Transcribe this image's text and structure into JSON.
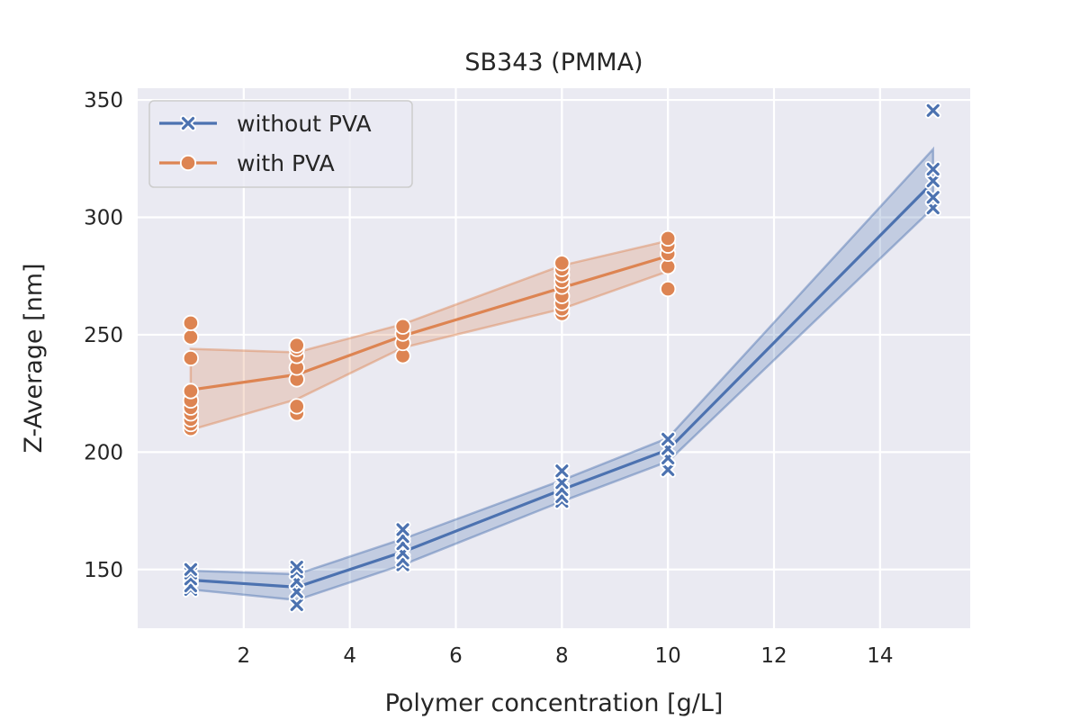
{
  "chart_data": {
    "type": "line",
    "title": "SB343 (PMMA)",
    "xlabel": "Polymer concentration [g/L]",
    "ylabel": "Z-Average [nm]",
    "xlim": [
      0.0,
      15.7
    ],
    "ylim": [
      125,
      355
    ],
    "xticks": [
      2,
      4,
      6,
      8,
      10,
      12,
      14
    ],
    "yticks": [
      150,
      200,
      250,
      300,
      350
    ],
    "xtick_labels": [
      "2",
      "4",
      "6",
      "8",
      "10",
      "12",
      "14"
    ],
    "ytick_labels": [
      "150",
      "200",
      "250",
      "300",
      "350"
    ],
    "grid": true,
    "legend_position": "top-left",
    "background": "#eaeaf2",
    "series": [
      {
        "name": "without PVA",
        "color": "#4c72b0",
        "marker": "x",
        "x": [
          1,
          3,
          5,
          8,
          10,
          15
        ],
        "mean": [
          145.5,
          142.5,
          157.5,
          184,
          201,
          315
        ],
        "ci_low": [
          141.5,
          137,
          152,
          179,
          196,
          304
        ],
        "ci_high": [
          149.5,
          148,
          163,
          188,
          206,
          329
        ],
        "points": [
          {
            "x": 1,
            "y": 141.5
          },
          {
            "x": 1,
            "y": 143
          },
          {
            "x": 1,
            "y": 146
          },
          {
            "x": 1,
            "y": 148.5
          },
          {
            "x": 1,
            "y": 150
          },
          {
            "x": 3,
            "y": 135
          },
          {
            "x": 3,
            "y": 140.5
          },
          {
            "x": 3,
            "y": 145
          },
          {
            "x": 3,
            "y": 149
          },
          {
            "x": 3,
            "y": 151
          },
          {
            "x": 5,
            "y": 152
          },
          {
            "x": 5,
            "y": 154
          },
          {
            "x": 5,
            "y": 157
          },
          {
            "x": 5,
            "y": 161
          },
          {
            "x": 5,
            "y": 164
          },
          {
            "x": 5,
            "y": 167
          },
          {
            "x": 8,
            "y": 179
          },
          {
            "x": 8,
            "y": 181
          },
          {
            "x": 8,
            "y": 184
          },
          {
            "x": 8,
            "y": 187
          },
          {
            "x": 8,
            "y": 192
          },
          {
            "x": 10,
            "y": 192.5
          },
          {
            "x": 10,
            "y": 197.5
          },
          {
            "x": 10,
            "y": 201.5
          },
          {
            "x": 10,
            "y": 205.5
          },
          {
            "x": 15,
            "y": 304
          },
          {
            "x": 15,
            "y": 308.5
          },
          {
            "x": 15,
            "y": 315.5
          },
          {
            "x": 15,
            "y": 320.5
          },
          {
            "x": 15,
            "y": 345.5
          }
        ]
      },
      {
        "name": "with PVA",
        "color": "#dd8452",
        "marker": "o",
        "x": [
          1,
          3,
          5,
          8,
          10
        ],
        "mean": [
          226.5,
          233,
          249.5,
          270,
          283.5
        ],
        "ci_low": [
          209.5,
          222.5,
          244.5,
          261,
          277
        ],
        "ci_high": [
          244,
          242.5,
          254.5,
          279.5,
          290
        ],
        "points": [
          {
            "x": 1,
            "y": 210
          },
          {
            "x": 1,
            "y": 212
          },
          {
            "x": 1,
            "y": 214
          },
          {
            "x": 1,
            "y": 216.5
          },
          {
            "x": 1,
            "y": 219
          },
          {
            "x": 1,
            "y": 222
          },
          {
            "x": 1,
            "y": 226
          },
          {
            "x": 1,
            "y": 240
          },
          {
            "x": 1,
            "y": 249
          },
          {
            "x": 1,
            "y": 255
          },
          {
            "x": 3,
            "y": 216.5
          },
          {
            "x": 3,
            "y": 219.5
          },
          {
            "x": 3,
            "y": 231
          },
          {
            "x": 3,
            "y": 236
          },
          {
            "x": 3,
            "y": 241
          },
          {
            "x": 3,
            "y": 244
          },
          {
            "x": 3,
            "y": 245.5
          },
          {
            "x": 5,
            "y": 241
          },
          {
            "x": 5,
            "y": 246.5
          },
          {
            "x": 5,
            "y": 250.5
          },
          {
            "x": 5,
            "y": 253.5
          },
          {
            "x": 8,
            "y": 259
          },
          {
            "x": 8,
            "y": 261
          },
          {
            "x": 8,
            "y": 263.5
          },
          {
            "x": 8,
            "y": 266.5
          },
          {
            "x": 8,
            "y": 270.5
          },
          {
            "x": 8,
            "y": 273
          },
          {
            "x": 8,
            "y": 275.5
          },
          {
            "x": 8,
            "y": 278
          },
          {
            "x": 8,
            "y": 280.5
          },
          {
            "x": 10,
            "y": 269.5
          },
          {
            "x": 10,
            "y": 279
          },
          {
            "x": 10,
            "y": 284.5
          },
          {
            "x": 10,
            "y": 288
          },
          {
            "x": 10,
            "y": 291
          }
        ]
      }
    ]
  }
}
